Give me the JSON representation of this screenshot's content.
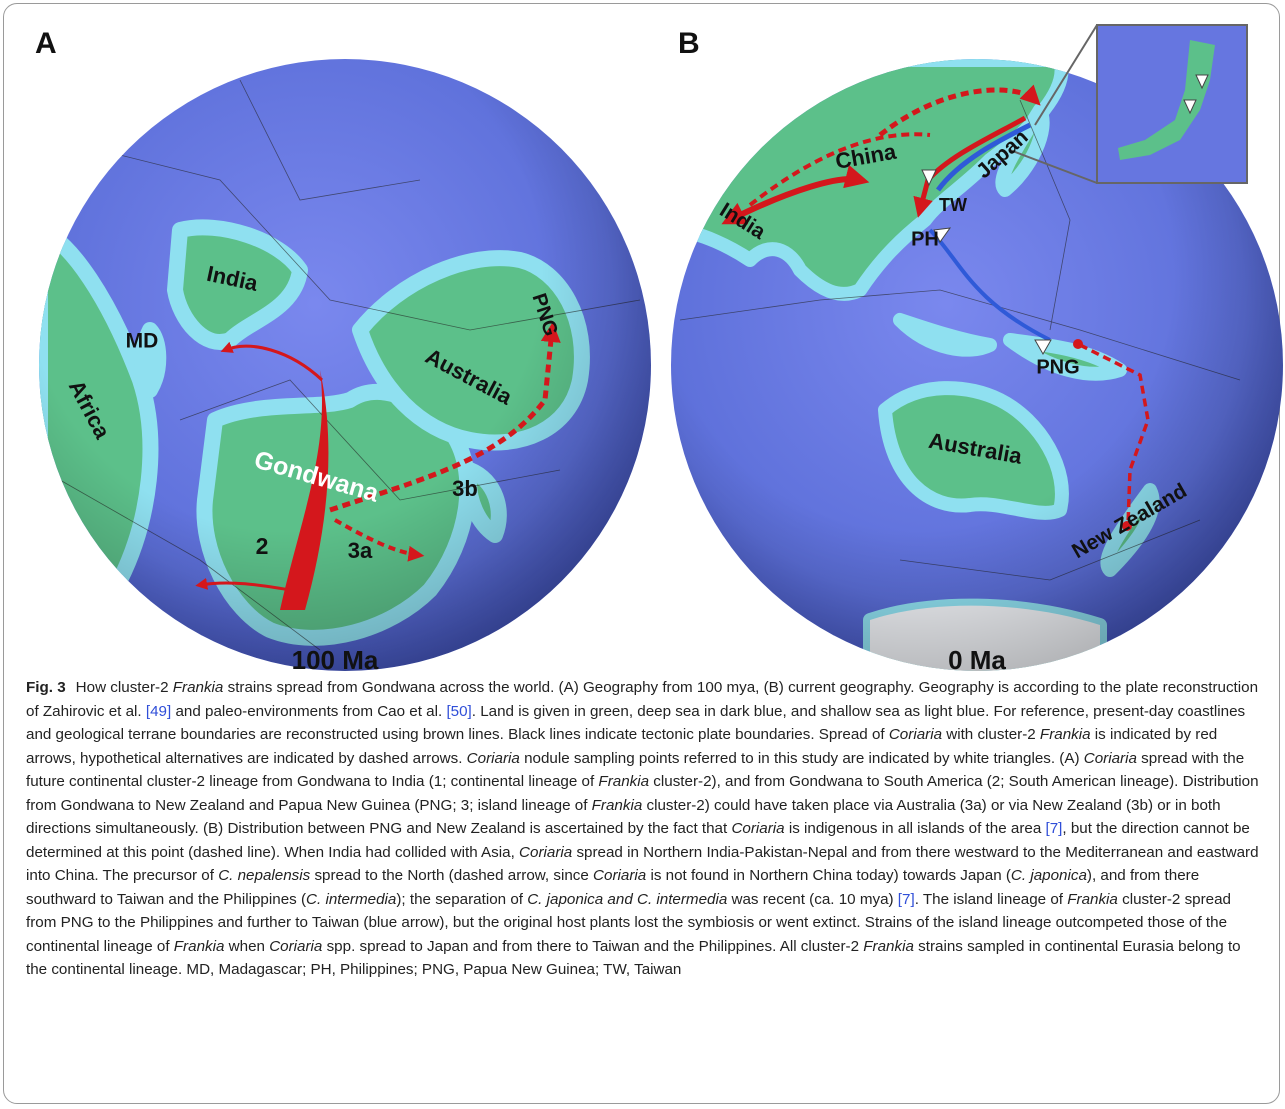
{
  "panels": [
    {
      "label": "A",
      "era": "100 Ma",
      "places": [
        "India",
        "MD",
        "Africa",
        "Australia",
        "PNG",
        "Gondwana",
        "2",
        "3a",
        "3b"
      ]
    },
    {
      "label": "B",
      "era": "0 Ma",
      "places": [
        "China",
        "Japan",
        "India",
        "TW",
        "PH",
        "PNG",
        "Australia",
        "New Zealand"
      ]
    }
  ],
  "caption": [
    {
      "text": "Fig. 3",
      "style": "bold"
    },
    {
      "text": "How cluster-2 "
    },
    {
      "text": "Frankia",
      "style": "italic"
    },
    {
      "text": " strains spread from Gondwana across the world. (A) Geography from 100 mya, (B) current geography. Geography is according to the plate reconstruction of Zahirovic et al. "
    },
    {
      "text": "[49]",
      "style": "link"
    },
    {
      "text": " and paleo-environments from Cao et al. "
    },
    {
      "text": "[50]",
      "style": "link"
    },
    {
      "text": ". Land is given in green, deep sea in dark blue, and shallow sea as light blue. For reference, present-day coastlines and geological terrane boundaries are reconstructed using brown lines. Black lines indicate tectonic plate boundaries. Spread of "
    },
    {
      "text": "Coriaria",
      "style": "italic"
    },
    {
      "text": " with cluster-2 "
    },
    {
      "text": "Frankia",
      "style": "italic"
    },
    {
      "text": " is indicated by red arrows, hypothetical alternatives are indicated by dashed arrows. "
    },
    {
      "text": "Coriaria",
      "style": "italic"
    },
    {
      "text": " nodule sampling points referred to in this study are indicated by white triangles. (A) "
    },
    {
      "text": "Coriaria",
      "style": "italic"
    },
    {
      "text": " spread with the future continental cluster-2 lineage from Gondwana to India (1; continental lineage of "
    },
    {
      "text": "Frankia",
      "style": "italic"
    },
    {
      "text": " cluster-2), and from Gondwana to South America (2; South American lineage). Distribution from Gondwana to New Zealand and Papua New Guinea (PNG; 3; island lineage of "
    },
    {
      "text": "Frankia",
      "style": "italic"
    },
    {
      "text": " cluster-2) could have taken place via Australia (3a) or via New Zealand (3b) or in both directions simultaneously. (B) Distribution between PNG and New Zealand is ascertained by the fact that "
    },
    {
      "text": "Coriaria",
      "style": "italic"
    },
    {
      "text": " is indigenous in all islands of the area "
    },
    {
      "text": "[7]",
      "style": "link"
    },
    {
      "text": ", but the direction cannot be determined at this point (dashed line). When India had collided with Asia, "
    },
    {
      "text": "Coriaria",
      "style": "italic"
    },
    {
      "text": " spread in Northern India-Pakistan-Nepal and from there westward to the Mediterranean and eastward into China. The precursor of "
    },
    {
      "text": "C. nepalensis",
      "style": "italic"
    },
    {
      "text": " spread to the North (dashed arrow, since "
    },
    {
      "text": "Coriaria",
      "style": "italic"
    },
    {
      "text": " is not found in Northern China today) towards Japan ("
    },
    {
      "text": "C. japonica",
      "style": "italic"
    },
    {
      "text": "), and from there southward to Taiwan and the Philippines ("
    },
    {
      "text": "C. intermedia",
      "style": "italic"
    },
    {
      "text": "); the separation of "
    },
    {
      "text": "C. japonica and C. intermedia",
      "style": "italic"
    },
    {
      "text": " was recent (ca. 10 mya) "
    },
    {
      "text": "[7]",
      "style": "link"
    },
    {
      "text": ". The island lineage of "
    },
    {
      "text": "Frankia",
      "style": "italic"
    },
    {
      "text": " cluster-2 spread from PNG to the Philippines and further to Taiwan (blue arrow), but the original host plants lost the symbiosis or went extinct. Strains of the island lineage outcompeted those of the continental lineage of "
    },
    {
      "text": "Frankia",
      "style": "italic"
    },
    {
      "text": " when "
    },
    {
      "text": "Coriaria",
      "style": "italic"
    },
    {
      "text": " spp. spread to Japan and from there to Taiwan and the Philippines. All cluster-2 "
    },
    {
      "text": "Frankia",
      "style": "italic"
    },
    {
      "text": " strains sampled in continental Eurasia belong to the continental lineage. MD, Madagascar; PH, Philippines; PNG, Papua New Guinea; TW, Taiwan"
    }
  ]
}
